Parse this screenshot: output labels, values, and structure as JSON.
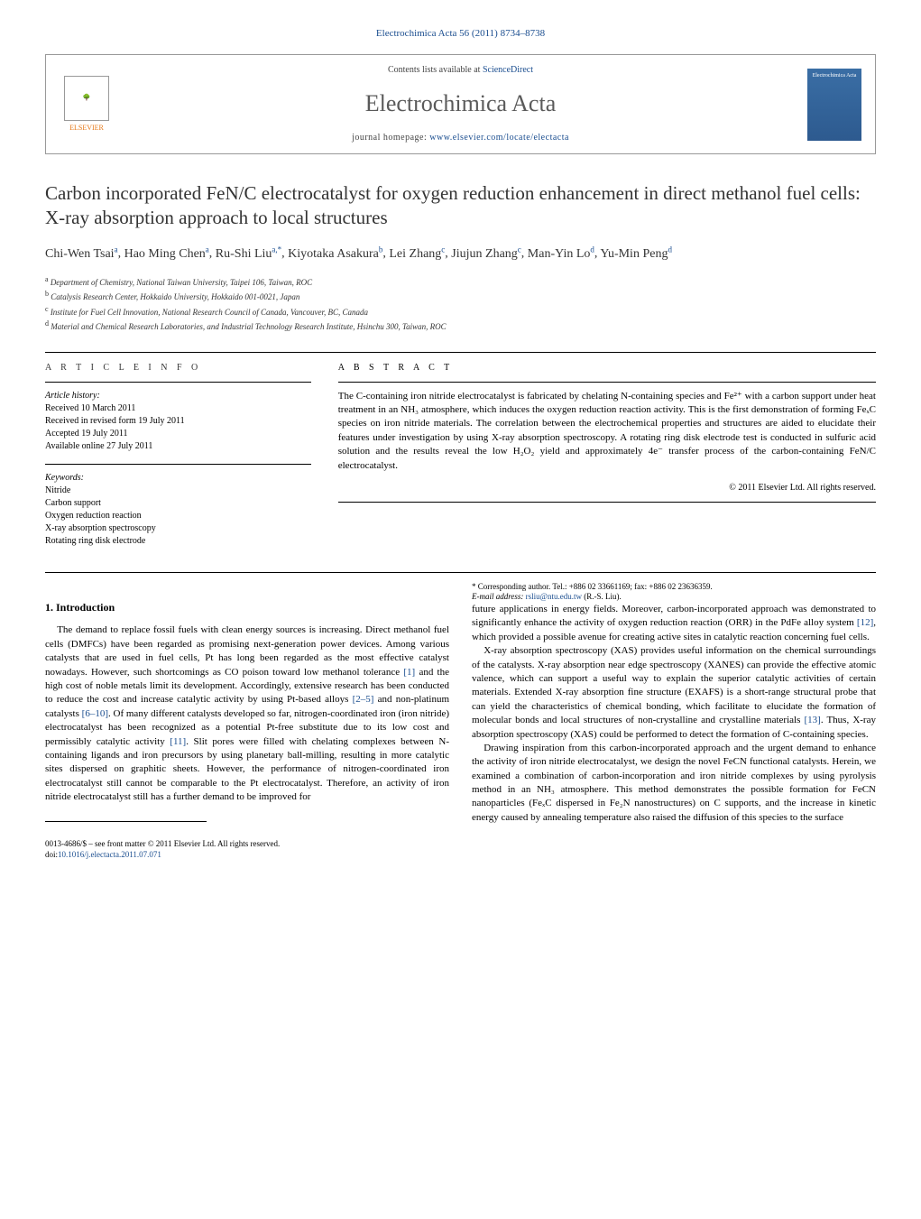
{
  "journal_ref": "Electrochimica Acta 56 (2011) 8734–8738",
  "header": {
    "contents_prefix": "Contents lists available at ",
    "contents_link": "ScienceDirect",
    "journal_name": "Electrochimica Acta",
    "homepage_prefix": "journal homepage: ",
    "homepage_url": "www.elsevier.com/locate/electacta",
    "publisher_name": "ELSEVIER",
    "cover_title": "Electrochimica Acta"
  },
  "title": "Carbon incorporated FeN/C electrocatalyst for oxygen reduction enhancement in direct methanol fuel cells: X-ray absorption approach to local structures",
  "authors": [
    {
      "name": "Chi-Wen Tsai",
      "marks": "a"
    },
    {
      "name": "Hao Ming Chen",
      "marks": "a"
    },
    {
      "name": "Ru-Shi Liu",
      "marks": "a,*"
    },
    {
      "name": "Kiyotaka Asakura",
      "marks": "b"
    },
    {
      "name": "Lei Zhang",
      "marks": "c"
    },
    {
      "name": "Jiujun Zhang",
      "marks": "c"
    },
    {
      "name": "Man-Yin Lo",
      "marks": "d"
    },
    {
      "name": "Yu-Min Peng",
      "marks": "d"
    }
  ],
  "affiliations": [
    {
      "key": "a",
      "text": "Department of Chemistry, National Taiwan University, Taipei 106, Taiwan, ROC"
    },
    {
      "key": "b",
      "text": "Catalysis Research Center, Hokkaido University, Hokkaido 001-0021, Japan"
    },
    {
      "key": "c",
      "text": "Institute for Fuel Cell Innovation, National Research Council of Canada, Vancouver, BC, Canada"
    },
    {
      "key": "d",
      "text": "Material and Chemical Research Laboratories, and Industrial Technology Research Institute, Hsinchu 300, Taiwan, ROC"
    }
  ],
  "article_info": {
    "heading": "A R T I C L E   I N F O",
    "history_label": "Article history:",
    "history": [
      "Received 10 March 2011",
      "Received in revised form 19 July 2011",
      "Accepted 19 July 2011",
      "Available online 27 July 2011"
    ],
    "keywords_label": "Keywords:",
    "keywords": [
      "Nitride",
      "Carbon support",
      "Oxygen reduction reaction",
      "X-ray absorption spectroscopy",
      "Rotating ring disk electrode"
    ]
  },
  "abstract": {
    "heading": "A B S T R A C T",
    "text": "The C-containing iron nitride electrocatalyst is fabricated by chelating N-containing species and Fe²⁺ with a carbon support under heat treatment in an NH₃ atmosphere, which induces the oxygen reduction reaction activity. This is the first demonstration of forming FeₓC species on iron nitride materials. The correlation between the electrochemical properties and structures are aided to elucidate their features under investigation by using X-ray absorption spectroscopy. A rotating ring disk electrode test is conducted in sulfuric acid solution and the results reveal the low H₂O₂ yield and approximately 4e⁻ transfer process of the carbon-containing FeN/C electrocatalyst.",
    "copyright": "© 2011 Elsevier Ltd. All rights reserved."
  },
  "sections": {
    "intro_heading": "1. Introduction",
    "intro_p1": "The demand to replace fossil fuels with clean energy sources is increasing. Direct methanol fuel cells (DMFCs) have been regarded as promising next-generation power devices. Among various catalysts that are used in fuel cells, Pt has long been regarded as the most effective catalyst nowadays. However, such shortcomings as CO poison toward low methanol tolerance [1] and the high cost of noble metals limit its development. Accordingly, extensive research has been conducted to reduce the cost and increase catalytic activity by using Pt-based alloys [2–5] and non-platinum catalysts [6–10]. Of many different catalysts developed so far, nitrogen-coordinated iron (iron nitride) electrocatalyst has been recognized as a potential Pt-free substitute due to its low cost and permissibly catalytic activity [11]. Slit pores were filled with chelating complexes between N-containing ligands and iron precursors by using planetary ball-milling, resulting in more catalytic sites dispersed on graphitic sheets. However, the performance of nitrogen-coordinated iron electrocatalyst still cannot be comparable to the Pt electrocatalyst. Therefore, an activity of iron nitride electrocatalyst still has a further demand to be improved for",
    "intro_p2": "future applications in energy fields. Moreover, carbon-incorporated approach was demonstrated to significantly enhance the activity of oxygen reduction reaction (ORR) in the PdFe alloy system [12], which provided a possible avenue for creating active sites in catalytic reaction concerning fuel cells.",
    "intro_p3": "X-ray absorption spectroscopy (XAS) provides useful information on the chemical surroundings of the catalysts. X-ray absorption near edge spectroscopy (XANES) can provide the effective atomic valence, which can support a useful way to explain the superior catalytic activities of certain materials. Extended X-ray absorption fine structure (EXAFS) is a short-range structural probe that can yield the characteristics of chemical bonding, which facilitate to elucidate the formation of molecular bonds and local structures of non-crystalline and crystalline materials [13]. Thus, X-ray absorption spectroscopy (XAS) could be performed to detect the formation of C-containing species.",
    "intro_p4": "Drawing inspiration from this carbon-incorporated approach and the urgent demand to enhance the activity of iron nitride electrocatalyst, we design the novel FeCN functional catalysts. Herein, we examined a combination of carbon-incorporation and iron nitride complexes by using pyrolysis method in an NH₃ atmosphere. This method demonstrates the possible formation for FeCN nanoparticles (FeₓC dispersed in Fe₂N nanostructures) on C supports, and the increase in kinetic energy caused by annealing temperature also raised the diffusion of this species to the surface"
  },
  "footnote": {
    "corresponding": "* Corresponding author. Tel.: +886 02 33661169; fax: +886 02 23636359.",
    "email_label": "E-mail address: ",
    "email": "rsliu@ntu.edu.tw",
    "email_who": " (R.-S. Liu)."
  },
  "footer": {
    "issn_line": "0013-4686/$ – see front matter © 2011 Elsevier Ltd. All rights reserved.",
    "doi_prefix": "doi:",
    "doi": "10.1016/j.electacta.2011.07.071"
  },
  "citation_links": [
    "[1]",
    "[2–5]",
    "[6–10]",
    "[11]",
    "[12]",
    "[13]"
  ],
  "colors": {
    "link": "#1a4d8f",
    "text": "#000000",
    "publisher_orange": "#e67817",
    "cover_blue": "#3a6ea5"
  }
}
